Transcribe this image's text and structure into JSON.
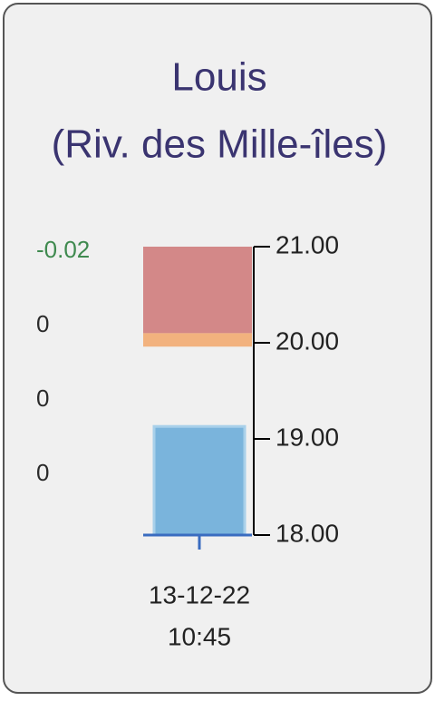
{
  "chart_data": {
    "type": "gauge",
    "title": "Louis",
    "subtitle": "(Riv. des Mille-îles)",
    "readings": [
      -0.02,
      0,
      0,
      0
    ],
    "reading_colors": [
      "#3f8a4f",
      "#2a2a2a",
      "#2a2a2a",
      "#2a2a2a"
    ],
    "ylim": [
      18,
      21
    ],
    "yticks": [
      {
        "value": 21,
        "label": "21.00"
      },
      {
        "value": 20,
        "label": "20.00"
      },
      {
        "value": 19,
        "label": "19.00"
      },
      {
        "value": 18,
        "label": "18.00"
      }
    ],
    "ranges": [
      {
        "color": "#d38888",
        "values": [
          20.1,
          21
        ]
      },
      {
        "color": "#f2b27e",
        "values": [
          19.96,
          20.1
        ]
      },
      {
        "color": "#7ab4dc",
        "values": [
          18,
          19.13
        ]
      }
    ],
    "date": "13-12-22",
    "time": "10:45"
  }
}
